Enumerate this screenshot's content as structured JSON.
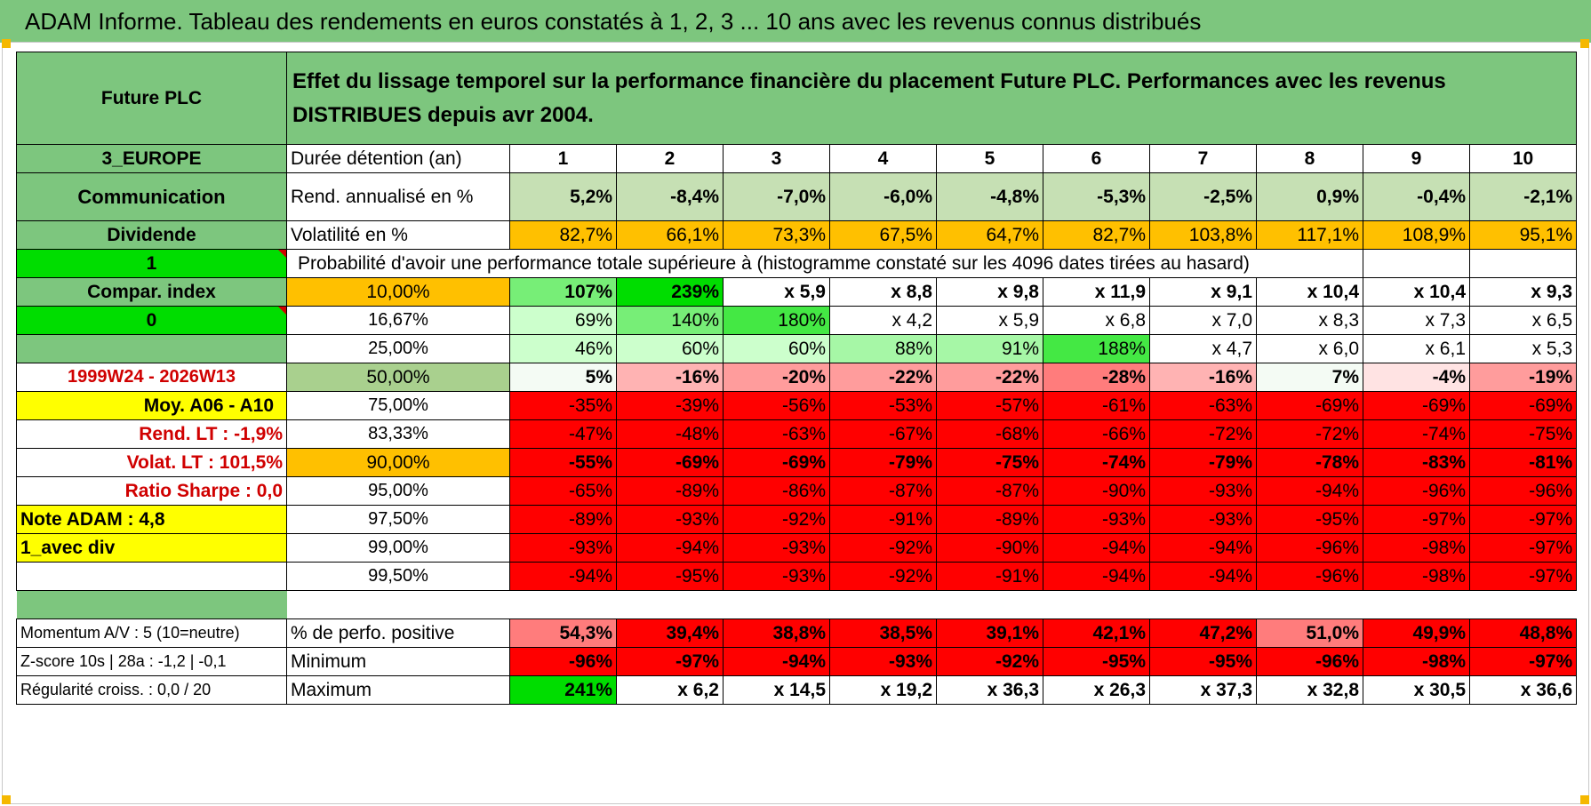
{
  "title": "ADAM Informe. Tableau des rendements en euros constatés à 1, 2, 3 ... 10 ans avec les revenus connus distribués",
  "header": {
    "fund": "Future PLC",
    "description": "Effet du lissage temporel sur la performance financière du placement Future PLC. Performances avec les revenus DISTRIBUES depuis avr 2004."
  },
  "sidebar": {
    "region": "3_EUROPE",
    "sector": "Communication",
    "dividend": "Dividende",
    "flag1": "1",
    "compar_index": "Compar. index",
    "flag0": "0",
    "period": "1999W24 - 2026W13",
    "moy": "Moy. A06 - A10",
    "rend_lt": "Rend. LT :    -1,9%",
    "volat_lt": "Volat. LT :    101,5%",
    "sharpe": "Ratio Sharpe :    0,0",
    "note": "Note ADAM : 4,8",
    "avec_div": "1_avec div"
  },
  "rows": {
    "duree": {
      "label": "Durée détention (an)",
      "values": [
        "1",
        "2",
        "3",
        "4",
        "5",
        "6",
        "7",
        "8",
        "9",
        "10"
      ]
    },
    "rend": {
      "label": "Rend. annualisé en %",
      "values": [
        "5,2%",
        "-8,4%",
        "-7,0%",
        "-6,0%",
        "-4,8%",
        "-5,3%",
        "-2,5%",
        "0,9%",
        "-0,4%",
        "-2,1%"
      ]
    },
    "vol": {
      "label": "Volatilité en %",
      "values": [
        "82,7%",
        "66,1%",
        "73,3%",
        "67,5%",
        "64,7%",
        "82,7%",
        "103,8%",
        "117,1%",
        "108,9%",
        "95,1%"
      ]
    },
    "prob_title": "Probabilité d'avoir une performance totale supérieure à (histogramme constaté sur les 4096 dates tirées au hasard)"
  },
  "prob": [
    {
      "pct": "10,00%",
      "values": [
        "107%",
        "239%",
        "x 5,9",
        "x 8,8",
        "x 9,8",
        "x 11,9",
        "x 9,1",
        "x 10,4",
        "x 10,4",
        "x 9,3"
      ]
    },
    {
      "pct": "16,67%",
      "values": [
        "69%",
        "140%",
        "180%",
        "x 4,2",
        "x 5,9",
        "x 6,8",
        "x 7,0",
        "x 8,3",
        "x 7,3",
        "x 6,5"
      ]
    },
    {
      "pct": "25,00%",
      "values": [
        "46%",
        "60%",
        "60%",
        "88%",
        "91%",
        "188%",
        "x 4,7",
        "x 6,0",
        "x 6,1",
        "x 5,3"
      ]
    },
    {
      "pct": "50,00%",
      "values": [
        "5%",
        "-16%",
        "-20%",
        "-22%",
        "-22%",
        "-28%",
        "-16%",
        "7%",
        "-4%",
        "-19%"
      ]
    },
    {
      "pct": "75,00%",
      "values": [
        "-35%",
        "-39%",
        "-56%",
        "-53%",
        "-57%",
        "-61%",
        "-63%",
        "-69%",
        "-69%",
        "-69%"
      ]
    },
    {
      "pct": "83,33%",
      "values": [
        "-47%",
        "-48%",
        "-63%",
        "-67%",
        "-68%",
        "-66%",
        "-72%",
        "-72%",
        "-74%",
        "-75%"
      ]
    },
    {
      "pct": "90,00%",
      "values": [
        "-55%",
        "-69%",
        "-69%",
        "-79%",
        "-75%",
        "-74%",
        "-79%",
        "-78%",
        "-83%",
        "-81%"
      ]
    },
    {
      "pct": "95,00%",
      "values": [
        "-65%",
        "-89%",
        "-86%",
        "-87%",
        "-87%",
        "-90%",
        "-93%",
        "-94%",
        "-96%",
        "-96%"
      ]
    },
    {
      "pct": "97,50%",
      "values": [
        "-89%",
        "-93%",
        "-92%",
        "-91%",
        "-89%",
        "-93%",
        "-93%",
        "-95%",
        "-97%",
        "-97%"
      ]
    },
    {
      "pct": "99,00%",
      "values": [
        "-93%",
        "-94%",
        "-93%",
        "-92%",
        "-90%",
        "-94%",
        "-94%",
        "-96%",
        "-98%",
        "-97%"
      ]
    },
    {
      "pct": "99,50%",
      "values": [
        "-94%",
        "-95%",
        "-93%",
        "-92%",
        "-91%",
        "-94%",
        "-94%",
        "-96%",
        "-98%",
        "-97%"
      ]
    }
  ],
  "bottom": [
    {
      "side": "Momentum A/V : 5 (10=neutre)",
      "label": "% de perfo. positive",
      "values": [
        "54,3%",
        "39,4%",
        "38,8%",
        "38,5%",
        "39,1%",
        "42,1%",
        "47,2%",
        "51,0%",
        "49,9%",
        "48,8%"
      ]
    },
    {
      "side": "Z-score 10s | 28a : -1,2 | -0,1",
      "label": "Minimum",
      "values": [
        "-96%",
        "-97%",
        "-94%",
        "-93%",
        "-92%",
        "-95%",
        "-95%",
        "-96%",
        "-98%",
        "-97%"
      ]
    },
    {
      "side": "Régularité croiss. : 0,0 / 20",
      "label": "Maximum",
      "values": [
        "241%",
        "x 6,2",
        "x 14,5",
        "x 19,2",
        "x 36,3",
        "x 26,3",
        "x 37,3",
        "x 32,8",
        "x 30,5",
        "x 36,6"
      ]
    }
  ],
  "colors": {
    "header_green": "#7dc67e",
    "light_green": "#c6e0b4",
    "orange": "#ffc000",
    "bright_green": "#00dd00",
    "yellow": "#ffff00",
    "red": "#ff0000"
  }
}
